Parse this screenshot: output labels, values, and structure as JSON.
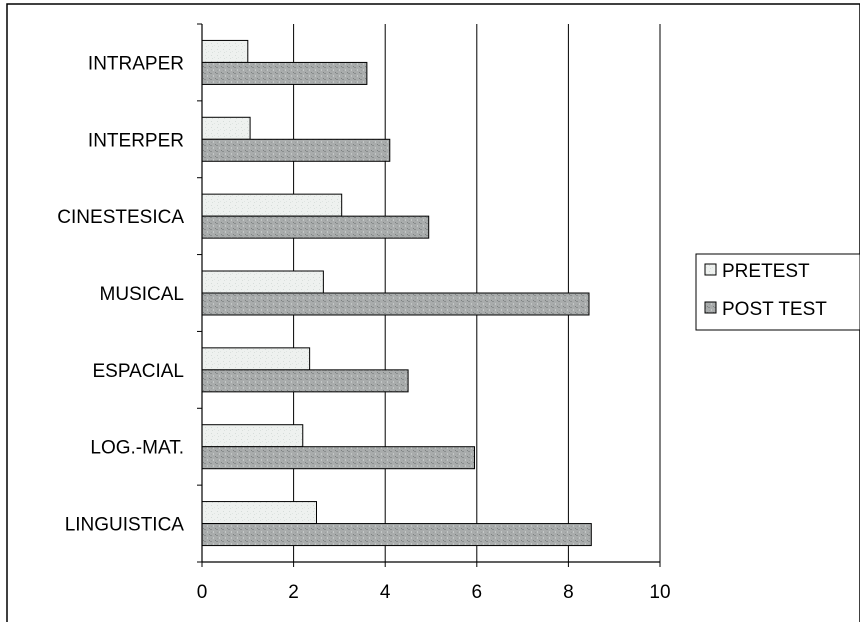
{
  "chart_data": {
    "type": "bar",
    "orientation": "horizontal",
    "categories": [
      "LINGUISTICA",
      "LOG.-MAT.",
      "ESPACIAL",
      "MUSICAL",
      "CINESTESICA",
      "INTERPER",
      "INTRAPER"
    ],
    "series": [
      {
        "name": "PRETEST",
        "values": [
          2.5,
          2.2,
          2.35,
          2.65,
          3.05,
          1.05,
          1.0
        ],
        "color": "#eef1ef"
      },
      {
        "name": "POST TEST",
        "values": [
          8.5,
          5.95,
          4.5,
          8.45,
          4.95,
          4.1,
          3.6
        ],
        "color": "#a9acac"
      }
    ],
    "xlim": [
      0,
      10
    ],
    "xticks": [
      "0",
      "2",
      "4",
      "6",
      "8",
      "10"
    ],
    "grid": "vertical",
    "legend_position": "right",
    "title": "",
    "xlabel": "",
    "ylabel": ""
  }
}
